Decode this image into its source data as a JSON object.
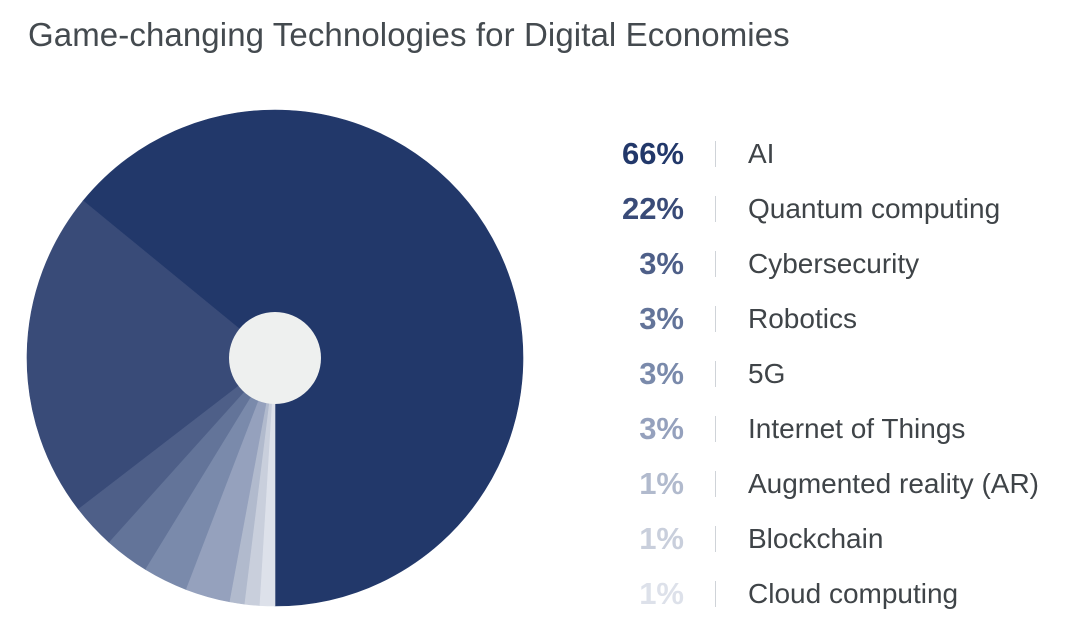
{
  "chart_data": {
    "type": "pie",
    "title": "Game-changing Technologies for Digital Economies",
    "categories": [
      "AI",
      "Quantum computing",
      "Cybersecurity",
      "Robotics",
      "5G",
      "Internet of Things",
      "Augmented reality (AR)",
      "Blockchain",
      "Cloud computing"
    ],
    "values": [
      66,
      22,
      3,
      3,
      3,
      3,
      1,
      1,
      1
    ],
    "value_labels": [
      "66%",
      "22%",
      "3%",
      "3%",
      "3%",
      "3%",
      "1%",
      "1%",
      "1%"
    ],
    "colors": [
      "#22386a",
      "#394b78",
      "#4e5f88",
      "#637499",
      "#7a8aab",
      "#95a1bd",
      "#b1bacd",
      "#c9cfdc",
      "#dde1ea"
    ],
    "label_colors": [
      "#22386a",
      "#394b78",
      "#4e5f88",
      "#637499",
      "#7a8aab",
      "#95a1bd",
      "#b1bacd",
      "#c9cfdc",
      "#dde1ea"
    ],
    "legend_placement": "right",
    "center_hole_color": "#eef0ef"
  }
}
